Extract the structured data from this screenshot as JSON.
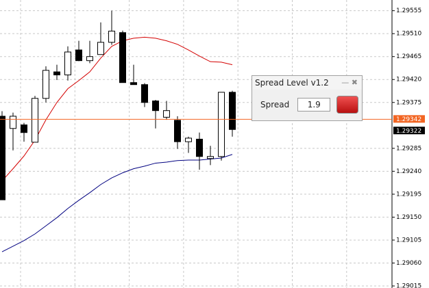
{
  "chart_data": {
    "type": "candlestick",
    "open": [
      1.29348,
      1.29324,
      1.29331,
      1.29297,
      1.29383,
      1.29435,
      1.29429,
      1.29478,
      1.29457,
      1.29469,
      1.29493,
      1.29512,
      1.29414,
      1.2941,
      1.29378,
      1.29346,
      1.2934,
      1.29298,
      1.29303,
      1.29265,
      1.29269,
      1.29395
    ],
    "high": [
      1.29358,
      1.29355,
      1.29335,
      1.29388,
      1.29446,
      1.29449,
      1.29485,
      1.29496,
      1.29496,
      1.29532,
      1.29555,
      1.29516,
      1.29449,
      1.29413,
      1.2938,
      1.29378,
      1.29348,
      1.29308,
      1.29316,
      1.2929,
      1.29395,
      1.29398
    ],
    "low": [
      1.29184,
      1.29281,
      1.29298,
      1.29297,
      1.29375,
      1.29419,
      1.29418,
      1.29456,
      1.29452,
      1.29469,
      1.29488,
      1.29414,
      1.2941,
      1.29366,
      1.29324,
      1.29341,
      1.29284,
      1.29276,
      1.29243,
      1.29252,
      1.29261,
      1.29308
    ],
    "close": [
      1.29184,
      1.29348,
      1.29316,
      1.29383,
      1.29438,
      1.29429,
      1.29474,
      1.29457,
      1.29465,
      1.29493,
      1.29515,
      1.29414,
      1.2941,
      1.29375,
      1.29359,
      1.29359,
      1.29298,
      1.29305,
      1.29269,
      1.29269,
      1.29395,
      1.29322
    ],
    "series": [
      {
        "color": "#d40000",
        "values": [
          1.29221,
          1.29245,
          1.2927,
          1.29301,
          1.29341,
          1.29375,
          1.29402,
          1.29418,
          1.29435,
          1.29462,
          1.29485,
          1.29496,
          1.29501,
          1.29503,
          1.29501,
          1.29496,
          1.29489,
          1.29478,
          1.29466,
          1.29455,
          1.29454,
          1.29449
        ]
      },
      {
        "color": "#000080",
        "values": [
          1.29082,
          1.29093,
          1.29104,
          1.29117,
          1.29133,
          1.29149,
          1.29167,
          1.29183,
          1.29198,
          1.29214,
          1.29227,
          1.29237,
          1.29245,
          1.2925,
          1.29256,
          1.29258,
          1.29261,
          1.29262,
          1.29262,
          1.29264,
          1.29266,
          1.29273
        ]
      }
    ],
    "ylim": [
      1.29011,
      1.29576
    ],
    "yticks": [
      1.29555,
      {
        "value": 1.2951,
        "label": "1.29510"
      },
      1.29465,
      {
        "value": 1.2942,
        "label": "1.29420"
      },
      1.29375,
      1.29285,
      {
        "value": 1.2924,
        "label": "1.29240"
      },
      1.29195,
      {
        "value": 1.2915,
        "label": "1.29150"
      },
      1.29105,
      {
        "value": 1.2906,
        "label": "1.29060"
      },
      1.29015
    ],
    "grid": true,
    "price_labels": [
      {
        "value": 1.29342,
        "color": "#f26522"
      },
      {
        "value": 1.29322,
        "color": "#000000"
      }
    ]
  },
  "panel": {
    "title": "Spread Level v1.2",
    "label": "Spread",
    "value": 1.9
  }
}
